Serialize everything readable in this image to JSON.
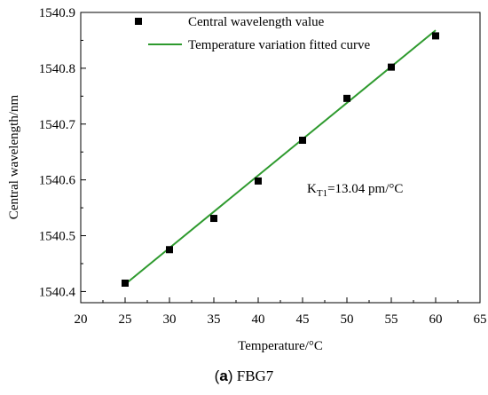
{
  "chart_data": {
    "type": "scatter",
    "xlabel": "Temperature/°C",
    "ylabel": "Central wavelength/nm",
    "xlim": [
      20,
      65
    ],
    "ylim": [
      1540.38,
      1540.9
    ],
    "xticks": [
      "20",
      "25",
      "30",
      "35",
      "40",
      "45",
      "50",
      "55",
      "60",
      "65"
    ],
    "yticks": [
      "1540.4",
      "1540.5",
      "1540.6",
      "1540.7",
      "1540.8",
      "1540.9"
    ],
    "series": [
      {
        "name": "Central wavelength value",
        "kind": "scatter",
        "color": "#000000",
        "x": [
          25,
          30,
          35,
          40,
          45,
          50,
          55,
          60
        ],
        "y": [
          1540.415,
          1540.475,
          1540.531,
          1540.598,
          1540.671,
          1540.746,
          1540.802,
          1540.858
        ]
      },
      {
        "name": "Temperature variation fitted curve",
        "kind": "line",
        "color": "#2e9a2e",
        "x": [
          25,
          60
        ],
        "y": [
          1540.413,
          1540.868
        ]
      }
    ],
    "annotation": {
      "main": "K",
      "sub": "T1",
      "rest": "=13.04 pm/°C"
    },
    "legend_position": "top-left",
    "grid": false
  },
  "caption": {
    "tag_open": "(",
    "tag_letter": "a",
    "tag_close": ")",
    "text": "FBG7"
  }
}
